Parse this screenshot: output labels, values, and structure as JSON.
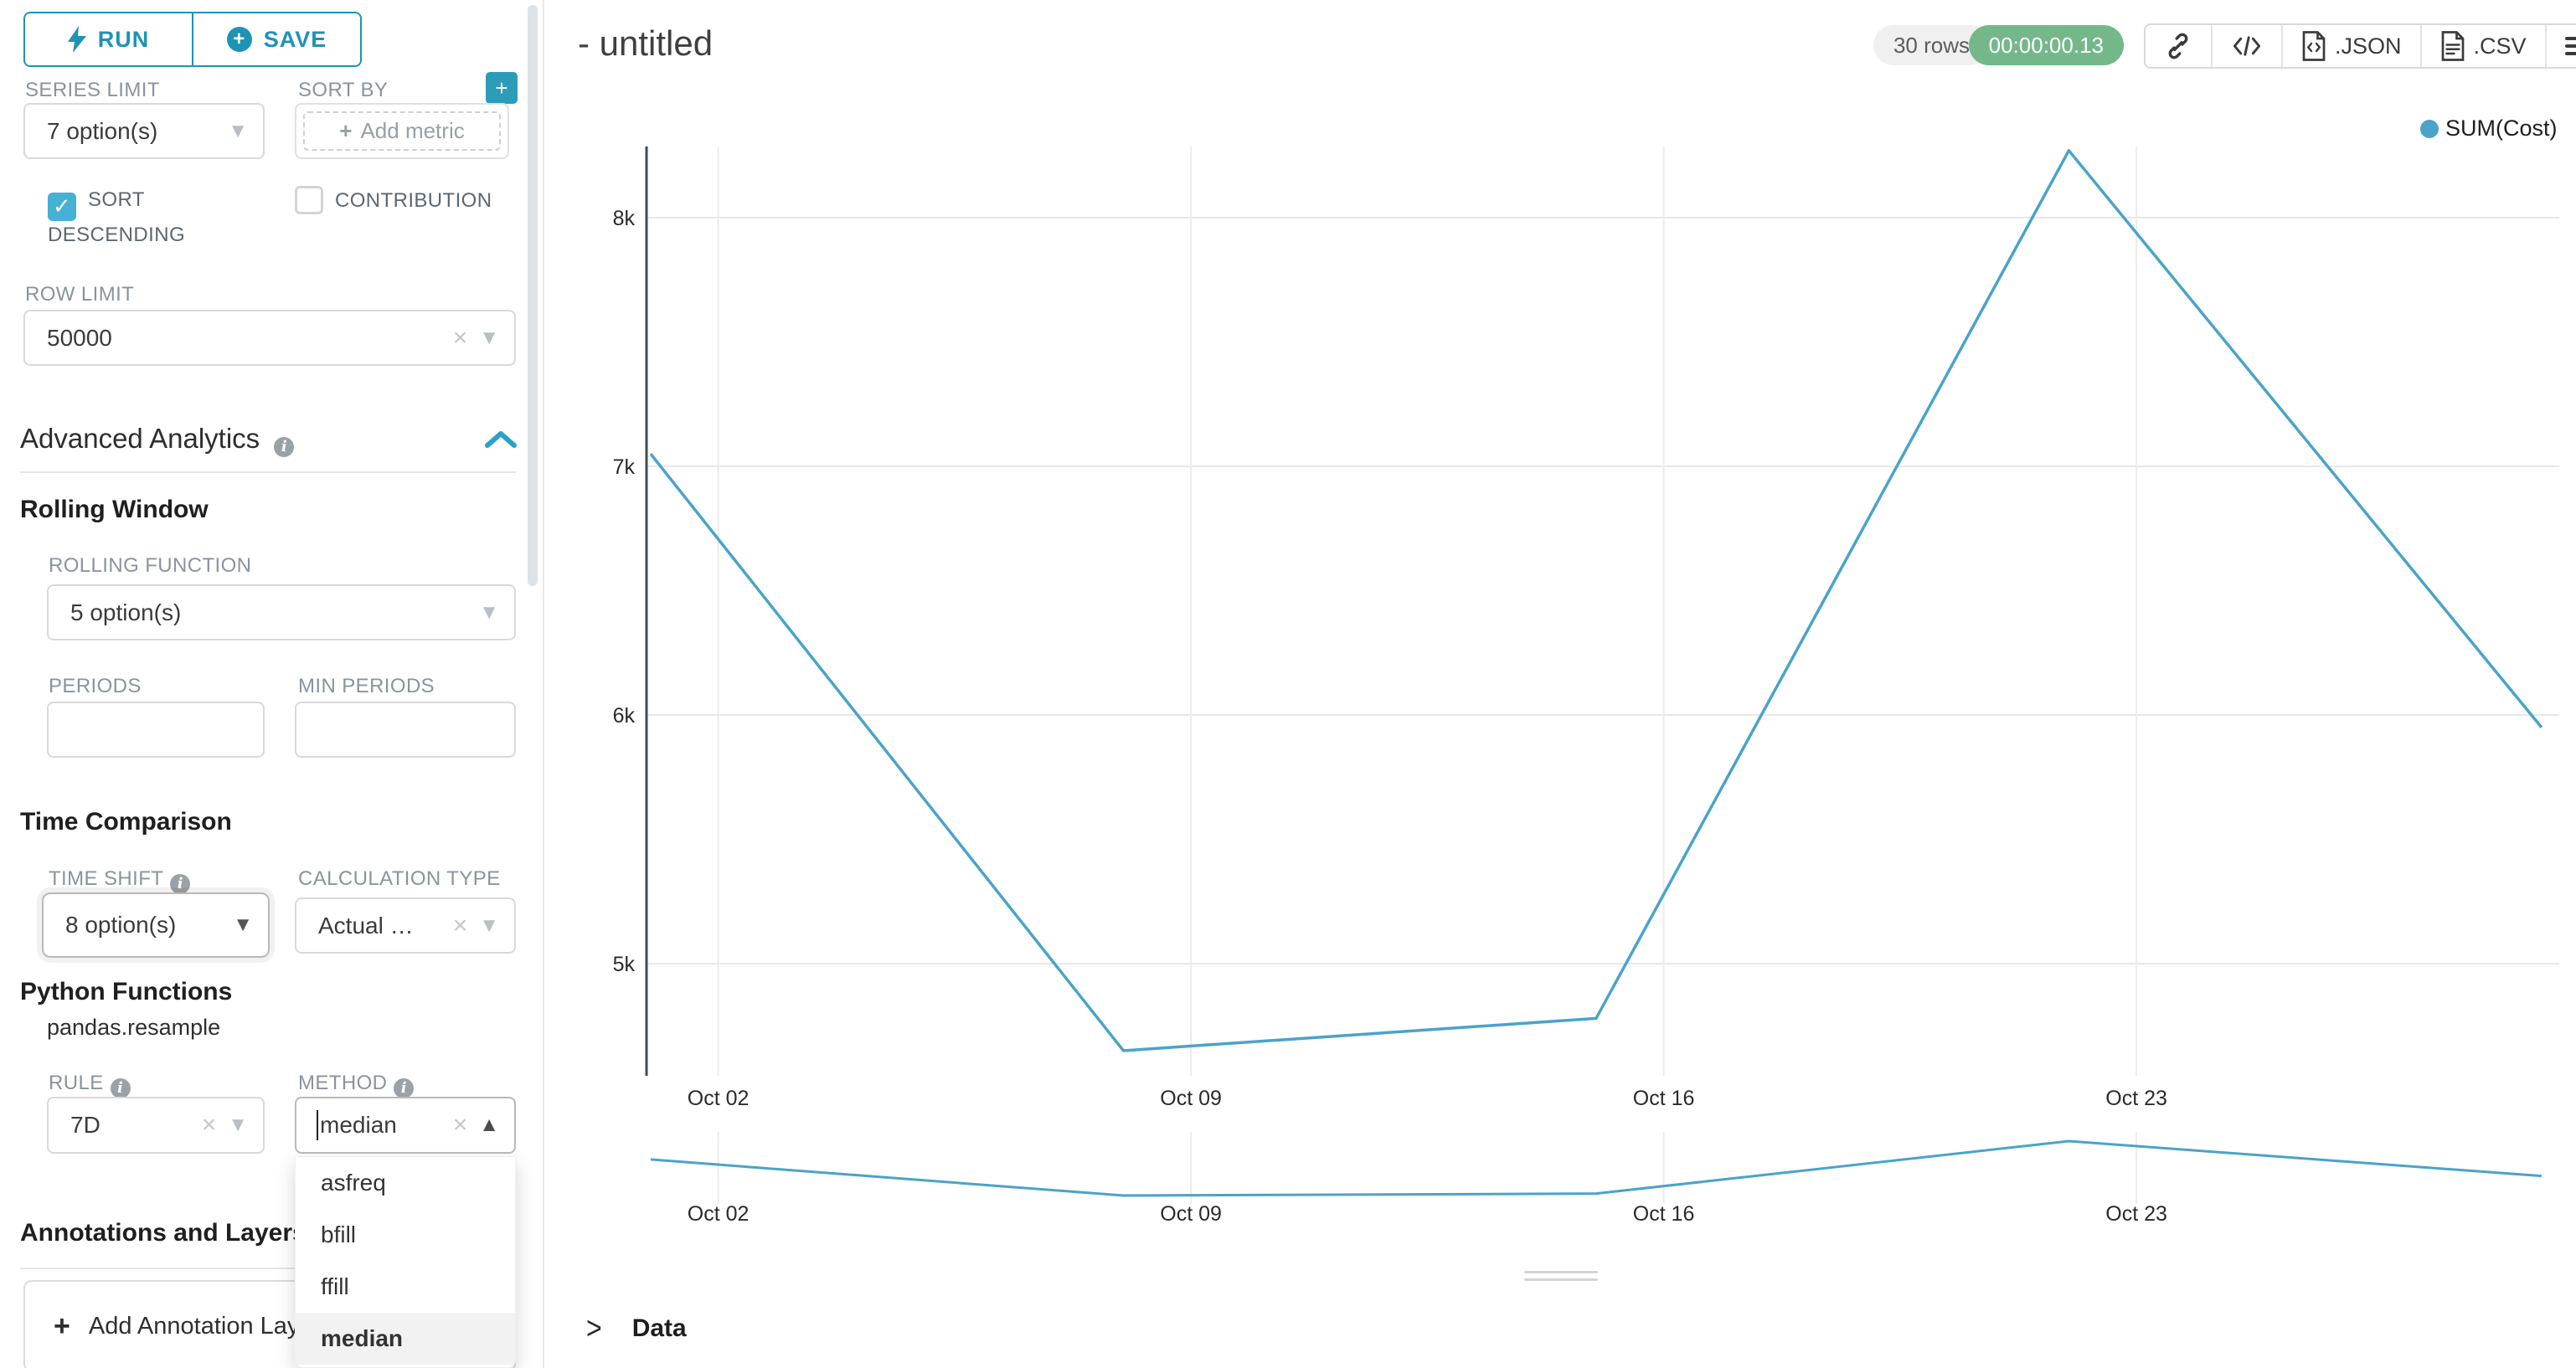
{
  "colors": {
    "accent": "#1f93b4",
    "checkbox": "#45b1d4",
    "line": "#4aa3c9",
    "timer_badge": "#74b889"
  },
  "toolbar": {
    "run_label": "RUN",
    "save_label": "SAVE"
  },
  "controls": {
    "series_limit": {
      "label": "SERIES LIMIT",
      "value": "7 option(s)"
    },
    "sort_by": {
      "label": "SORT BY",
      "placeholder": "Add metric"
    },
    "sort_descending": {
      "label": "SORT DESCENDING",
      "checked": true
    },
    "contribution": {
      "label": "CONTRIBUTION",
      "checked": false
    },
    "row_limit": {
      "label": "ROW LIMIT",
      "value": "50000"
    }
  },
  "advanced_analytics": {
    "title": "Advanced Analytics",
    "rolling_window": {
      "title": "Rolling Window",
      "rolling_function": {
        "label": "ROLLING FUNCTION",
        "value": "5 option(s)"
      },
      "periods": {
        "label": "PERIODS",
        "value": ""
      },
      "min_periods": {
        "label": "MIN PERIODS",
        "value": ""
      }
    },
    "time_comparison": {
      "title": "Time Comparison",
      "time_shift": {
        "label": "TIME SHIFT",
        "value": "8 option(s)"
      },
      "calculation_type": {
        "label": "CALCULATION TYPE",
        "value": "Actual V..."
      }
    },
    "python_functions": {
      "title": "Python Functions",
      "subtitle": "pandas.resample",
      "rule": {
        "label": "RULE",
        "value": "7D"
      },
      "method": {
        "label": "METHOD",
        "value": "median",
        "options": [
          "asfreq",
          "bfill",
          "ffill",
          "median"
        ],
        "selected": "median"
      }
    }
  },
  "annotations": {
    "title": "Annotations and Layers",
    "add_button": "Add Annotation Layer"
  },
  "header": {
    "title": "- untitled",
    "rows_badge": "30 rows",
    "timer_badge": "00:00:00.13",
    "export_json_label": ".JSON",
    "export_csv_label": ".CSV"
  },
  "data_panel": {
    "label": "Data"
  },
  "chart_data": {
    "type": "line",
    "legend": {
      "label": "SUM(Cost)",
      "position": "top-right"
    },
    "grid": true,
    "series": [
      {
        "name": "SUM(Cost)",
        "color": "#4aa3c9",
        "points": [
          {
            "x": "Oct 01",
            "day": 0,
            "y": 7050
          },
          {
            "x": "Oct 08",
            "day": 7,
            "y": 4650
          },
          {
            "x": "Oct 15",
            "day": 14,
            "y": 4780
          },
          {
            "x": "Oct 22",
            "day": 21,
            "y": 8270
          },
          {
            "x": "Oct 29",
            "day": 28,
            "y": 5950
          }
        ]
      }
    ],
    "x_ticks": [
      {
        "label": "Oct 02",
        "day": 1
      },
      {
        "label": "Oct 09",
        "day": 8
      },
      {
        "label": "Oct 16",
        "day": 15
      },
      {
        "label": "Oct 23",
        "day": 22
      }
    ],
    "y_ticks": [
      {
        "label": "5k",
        "value": 5000
      },
      {
        "label": "6k",
        "value": 6000
      },
      {
        "label": "7k",
        "value": 7000
      },
      {
        "label": "8k",
        "value": 8000
      }
    ],
    "ylim": [
      4550,
      8260
    ],
    "preview": {
      "enabled": true,
      "x_tick_labels": [
        "Oct 02",
        "Oct 09",
        "Oct 16",
        "Oct 23"
      ]
    }
  }
}
